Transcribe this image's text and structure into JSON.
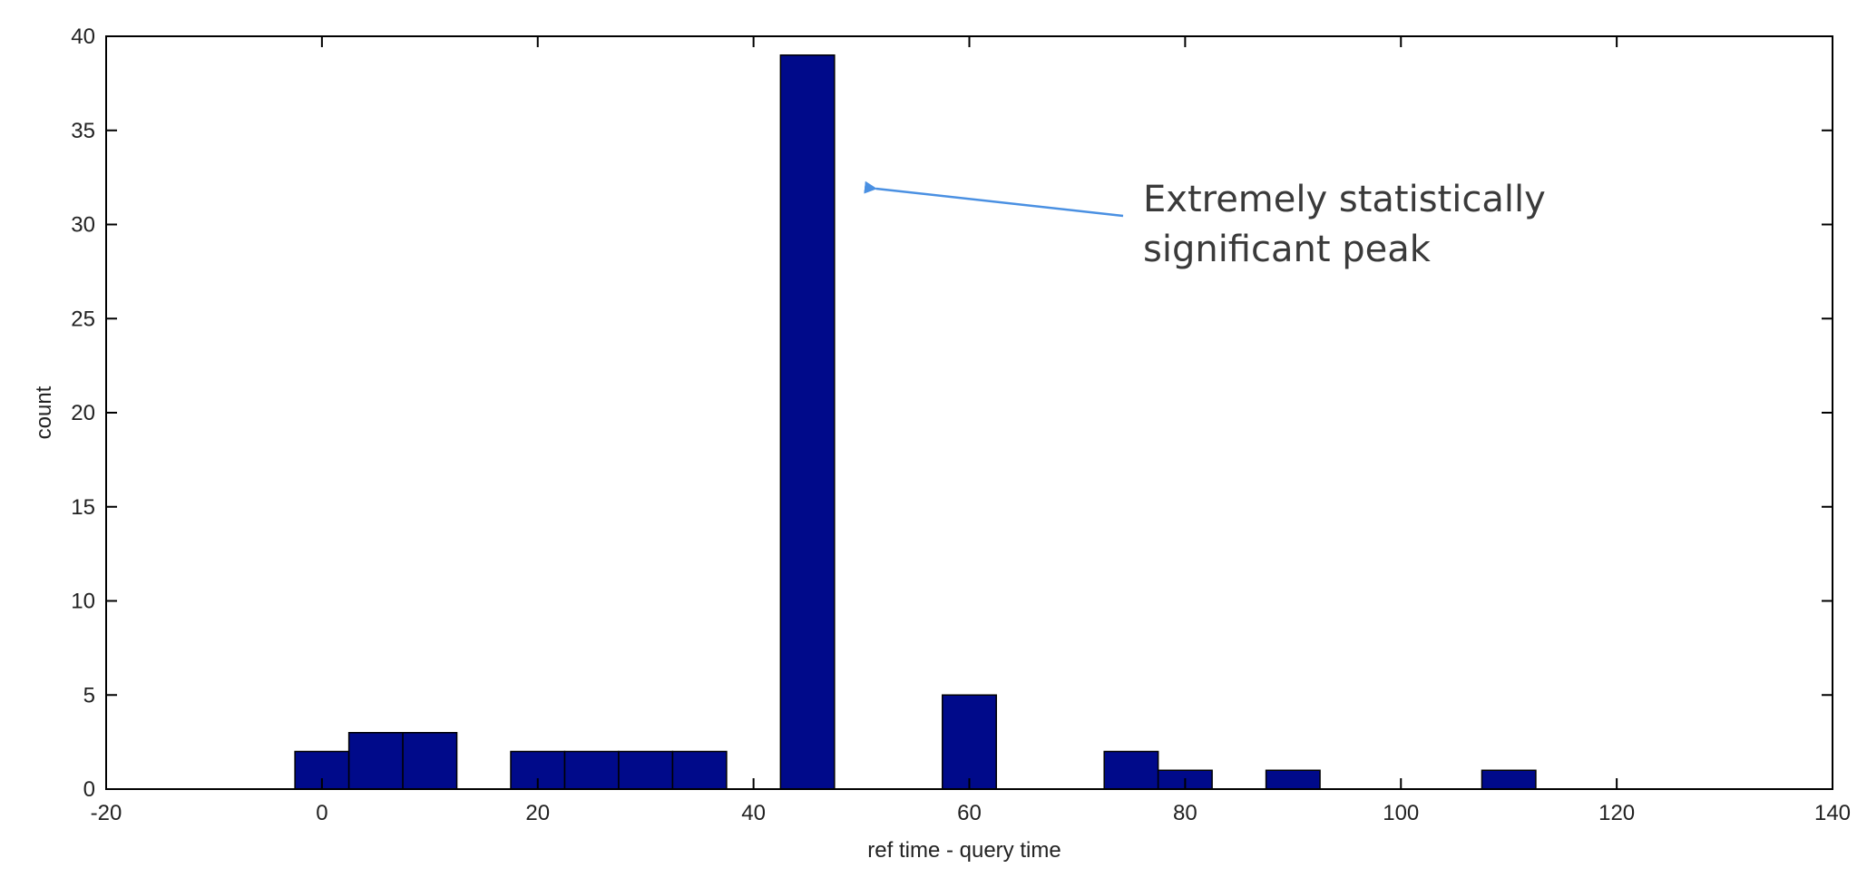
{
  "chart_data": {
    "type": "bar",
    "xlabel": "ref time - query time",
    "ylabel": "count",
    "xlim": [
      -20,
      140
    ],
    "ylim": [
      0,
      40
    ],
    "x_ticks": [
      "-20",
      "0",
      "20",
      "40",
      "60",
      "80",
      "100",
      "120",
      "140"
    ],
    "y_ticks": [
      "0",
      "5",
      "10",
      "15",
      "20",
      "25",
      "30",
      "35",
      "40"
    ],
    "grid": false,
    "bin_width": 5,
    "bar_color": "#000a8a",
    "bins": [
      {
        "center": 0,
        "count": 2
      },
      {
        "center": 5,
        "count": 3
      },
      {
        "center": 10,
        "count": 3
      },
      {
        "center": 20,
        "count": 2
      },
      {
        "center": 25,
        "count": 2
      },
      {
        "center": 30,
        "count": 2
      },
      {
        "center": 35,
        "count": 2
      },
      {
        "center": 45,
        "count": 39
      },
      {
        "center": 60,
        "count": 5
      },
      {
        "center": 75,
        "count": 2
      },
      {
        "center": 80,
        "count": 1
      },
      {
        "center": 90,
        "count": 1
      },
      {
        "center": 110,
        "count": 1
      }
    ],
    "annotation": {
      "lines": [
        "Extremely statistically",
        "significant peak"
      ],
      "arrow_color": "#4a90e2",
      "points_to": {
        "x": 50,
        "y": 32
      }
    }
  }
}
